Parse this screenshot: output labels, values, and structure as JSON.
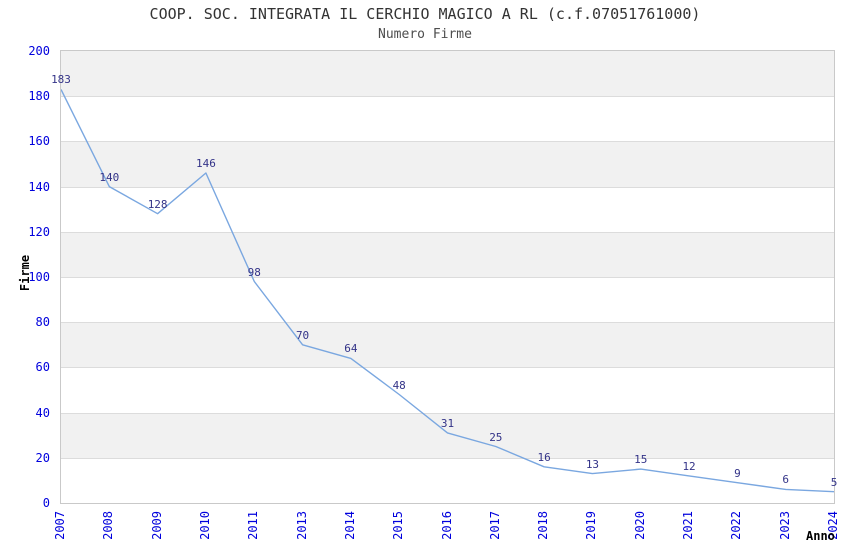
{
  "header": {
    "title": "COOP. SOC. INTEGRATA IL CERCHIO MAGICO A RL (c.f.07051761000)",
    "subtitle": "Numero Firme"
  },
  "chart_data": {
    "type": "line",
    "title": "COOP. SOC. INTEGRATA IL CERCHIO MAGICO A RL (c.f.07051761000)",
    "subtitle": "Numero Firme",
    "xlabel": "Anno",
    "ylabel": "Firme",
    "categories": [
      "2007",
      "2008",
      "2009",
      "2010",
      "2011",
      "2013",
      "2014",
      "2015",
      "2016",
      "2017",
      "2018",
      "2019",
      "2020",
      "2021",
      "2022",
      "2023",
      "2024"
    ],
    "values": [
      183,
      140,
      128,
      146,
      98,
      70,
      64,
      48,
      31,
      25,
      16,
      13,
      15,
      12,
      9,
      6,
      5
    ],
    "ylim": [
      0,
      200
    ],
    "ytick_step": 20,
    "grid": "alternating-horizontal-bands",
    "legend_position": "none",
    "colors": {
      "line": "#7aa7e0",
      "data_label": "#333388",
      "tick_label": "#0000dd",
      "axis_title": "#000000",
      "band_shaded": "#f1f1f1",
      "band_plain": "#ffffff",
      "gridline": "#dcdcdc",
      "plot_border": "#c9c9c9",
      "title_text": "#333333",
      "subtitle_text": "#4d4d4d"
    }
  }
}
